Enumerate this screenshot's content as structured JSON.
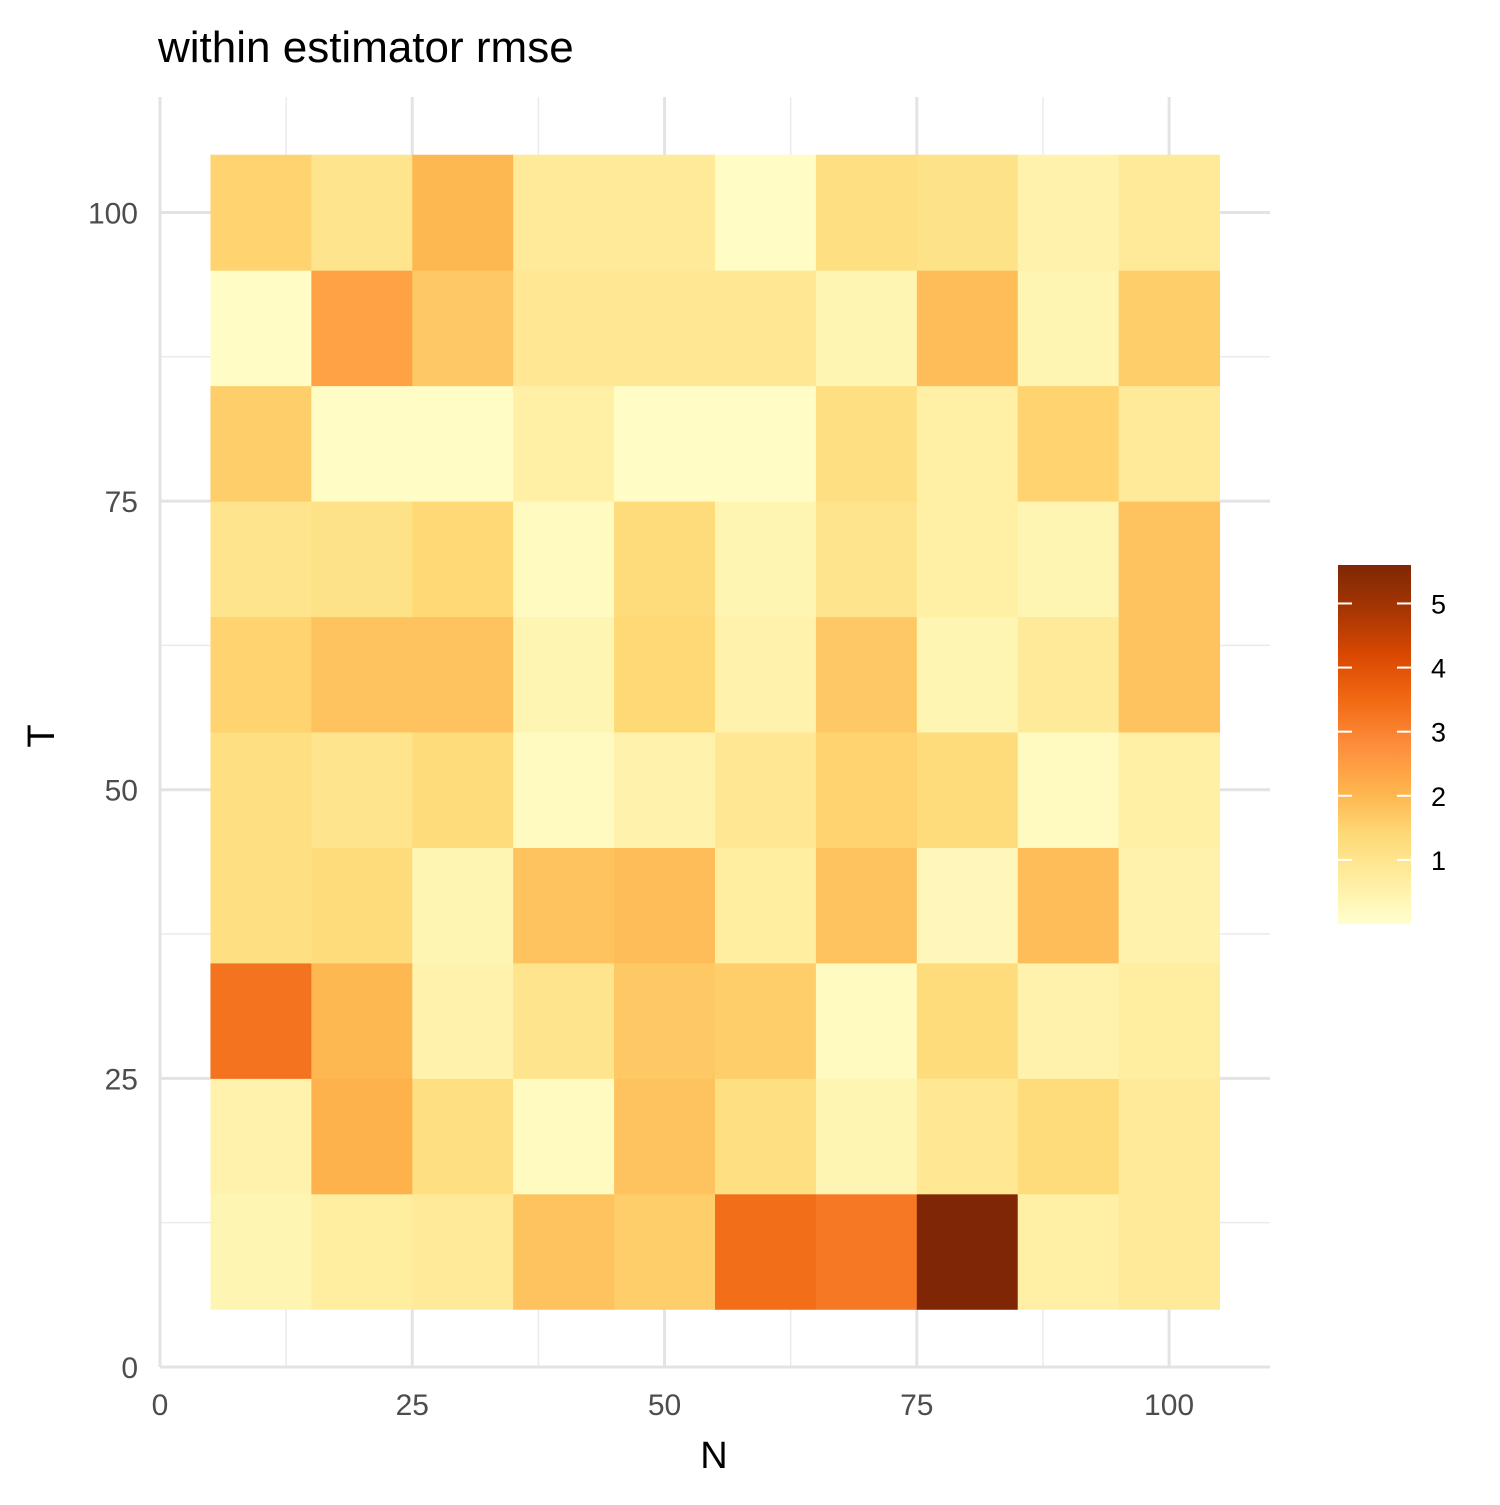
{
  "chart_data": {
    "type": "heatmap",
    "title": "within estimator rmse",
    "xlabel": "N",
    "ylabel": "T",
    "xlim": [
      0,
      110
    ],
    "ylim": [
      0,
      110
    ],
    "x_ticks": [
      0,
      25,
      50,
      75,
      100
    ],
    "y_ticks": [
      0,
      25,
      50,
      75,
      100
    ],
    "x": [
      10,
      20,
      30,
      40,
      50,
      60,
      70,
      80,
      90,
      100
    ],
    "y": [
      10,
      20,
      30,
      40,
      50,
      60,
      70,
      80,
      90,
      100
    ],
    "grid": true,
    "legend": {
      "position": "right",
      "ticks": [
        1,
        2,
        3,
        4,
        5
      ],
      "min": 0,
      "max": 5.6
    },
    "colors": [
      "#ffffcc",
      "#ffeda0",
      "#fed976",
      "#feb24c",
      "#fd8d3c",
      "#f16913",
      "#d94801",
      "#a63603",
      "#7f2704"
    ],
    "z": [
      [
        0.4,
        0.7,
        0.8,
        1.8,
        1.6,
        3.4,
        3.2,
        5.6,
        0.6,
        0.8
      ],
      [
        0.5,
        2.1,
        1.2,
        0.2,
        1.8,
        1.2,
        0.4,
        0.9,
        1.3,
        0.8
      ],
      [
        3.3,
        2.0,
        0.5,
        1.0,
        1.7,
        1.6,
        0.2,
        1.3,
        0.5,
        0.7
      ],
      [
        1.2,
        1.3,
        0.4,
        1.8,
        1.9,
        0.7,
        1.8,
        0.3,
        1.9,
        0.5
      ],
      [
        1.2,
        1.0,
        1.3,
        0.2,
        0.5,
        0.9,
        1.5,
        1.3,
        0.2,
        0.6
      ],
      [
        1.5,
        1.8,
        1.8,
        0.4,
        1.4,
        0.5,
        1.7,
        0.4,
        0.8,
        1.8
      ],
      [
        1.0,
        1.1,
        1.4,
        0.2,
        1.3,
        0.4,
        1.0,
        0.6,
        0.4,
        1.8
      ],
      [
        1.6,
        0.1,
        0.1,
        0.6,
        0.1,
        0.1,
        1.2,
        0.6,
        1.5,
        0.8
      ],
      [
        0.1,
        2.4,
        1.7,
        0.9,
        0.9,
        0.9,
        0.4,
        1.9,
        0.4,
        1.6
      ],
      [
        1.5,
        1.0,
        2.0,
        0.8,
        0.8,
        0.1,
        1.2,
        1.1,
        0.5,
        0.8
      ]
    ]
  }
}
